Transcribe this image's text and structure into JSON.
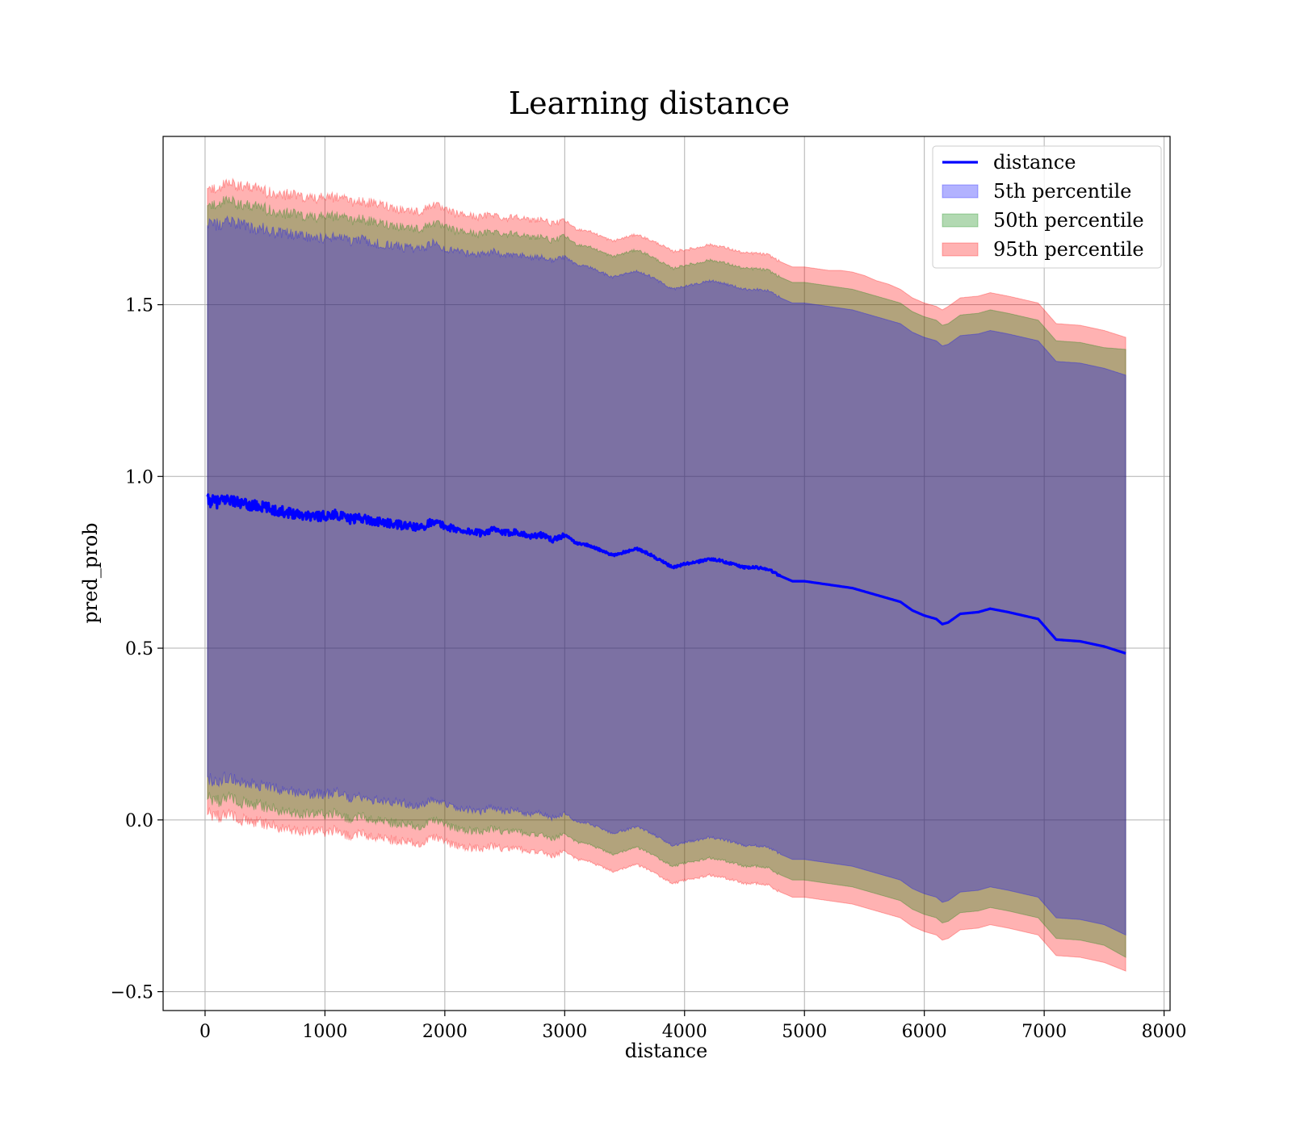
{
  "chart_data": {
    "type": "line",
    "title": "Learning distance",
    "xlabel": "distance",
    "ylabel": "pred_prob",
    "xlim": [
      -350,
      8050
    ],
    "ylim": [
      -0.555,
      1.99
    ],
    "xticks": [
      0,
      1000,
      2000,
      3000,
      4000,
      5000,
      6000,
      7000,
      8000
    ],
    "xtick_labels": [
      "0",
      "1000",
      "2000",
      "3000",
      "4000",
      "5000",
      "6000",
      "7000",
      "8000"
    ],
    "yticks": [
      -0.5,
      0.0,
      0.5,
      1.0,
      1.5
    ],
    "ytick_labels": [
      "−0.5",
      "0.0",
      "0.5",
      "1.0",
      "1.5"
    ],
    "grid": true,
    "legend_position": "top-right",
    "line": {
      "name": "distance",
      "color": "#0000ff",
      "x": [
        20,
        100,
        200,
        300,
        400,
        500,
        600,
        700,
        800,
        900,
        1000,
        1100,
        1200,
        1300,
        1400,
        1500,
        1600,
        1700,
        1800,
        1900,
        2000,
        2100,
        2200,
        2300,
        2400,
        2500,
        2600,
        2700,
        2800,
        2900,
        3000,
        3100,
        3200,
        3300,
        3400,
        3500,
        3600,
        3700,
        3800,
        3900,
        4000,
        4100,
        4200,
        4300,
        4400,
        4500,
        4600,
        4700,
        4800,
        4900,
        5000,
        5100,
        5200,
        5300,
        5400,
        5500,
        5600,
        5700,
        5800,
        5900,
        6000,
        6100,
        6150,
        6200,
        6300,
        6450,
        6550,
        6700,
        6950,
        7100,
        7300,
        7500,
        7680
      ],
      "y": [
        0.93,
        0.925,
        0.935,
        0.92,
        0.915,
        0.91,
        0.9,
        0.895,
        0.89,
        0.885,
        0.885,
        0.89,
        0.875,
        0.88,
        0.87,
        0.865,
        0.86,
        0.855,
        0.85,
        0.87,
        0.855,
        0.845,
        0.84,
        0.835,
        0.845,
        0.835,
        0.84,
        0.825,
        0.83,
        0.815,
        0.83,
        0.805,
        0.8,
        0.785,
        0.77,
        0.78,
        0.79,
        0.775,
        0.755,
        0.735,
        0.745,
        0.75,
        0.76,
        0.755,
        0.745,
        0.735,
        0.735,
        0.73,
        0.71,
        0.695,
        0.695,
        0.69,
        0.685,
        0.68,
        0.675,
        0.665,
        0.655,
        0.645,
        0.635,
        0.61,
        0.595,
        0.585,
        0.57,
        0.575,
        0.6,
        0.605,
        0.615,
        0.605,
        0.585,
        0.525,
        0.52,
        0.505,
        0.485
      ],
      "noise_until_x": 3000
    },
    "bands": [
      {
        "name": "95th percentile",
        "color": "#ff0000",
        "opacity": 0.3,
        "upper": [
          1.85,
          1.84,
          1.855,
          1.845,
          1.84,
          1.83,
          1.825,
          1.82,
          1.815,
          1.81,
          1.81,
          1.815,
          1.8,
          1.8,
          1.795,
          1.79,
          1.78,
          1.775,
          1.77,
          1.795,
          1.775,
          1.765,
          1.76,
          1.755,
          1.765,
          1.75,
          1.76,
          1.745,
          1.75,
          1.735,
          1.745,
          1.72,
          1.715,
          1.7,
          1.685,
          1.695,
          1.705,
          1.69,
          1.675,
          1.655,
          1.66,
          1.665,
          1.675,
          1.67,
          1.66,
          1.65,
          1.65,
          1.645,
          1.625,
          1.61,
          1.61,
          1.605,
          1.6,
          1.6,
          1.595,
          1.585,
          1.57,
          1.56,
          1.545,
          1.52,
          1.505,
          1.495,
          1.485,
          1.495,
          1.52,
          1.525,
          1.535,
          1.525,
          1.505,
          1.445,
          1.44,
          1.425,
          1.405
        ],
        "lower": [
          0.02,
          0.01,
          0.015,
          0.0,
          -0.005,
          -0.01,
          -0.02,
          -0.025,
          -0.03,
          -0.035,
          -0.035,
          -0.03,
          -0.045,
          -0.04,
          -0.05,
          -0.055,
          -0.06,
          -0.065,
          -0.07,
          -0.05,
          -0.065,
          -0.075,
          -0.08,
          -0.085,
          -0.075,
          -0.085,
          -0.08,
          -0.095,
          -0.09,
          -0.105,
          -0.09,
          -0.115,
          -0.12,
          -0.135,
          -0.15,
          -0.14,
          -0.13,
          -0.145,
          -0.165,
          -0.185,
          -0.175,
          -0.17,
          -0.16,
          -0.165,
          -0.175,
          -0.185,
          -0.185,
          -0.19,
          -0.21,
          -0.225,
          -0.225,
          -0.23,
          -0.235,
          -0.24,
          -0.245,
          -0.255,
          -0.265,
          -0.275,
          -0.285,
          -0.31,
          -0.325,
          -0.335,
          -0.35,
          -0.345,
          -0.32,
          -0.315,
          -0.305,
          -0.315,
          -0.335,
          -0.395,
          -0.4,
          -0.415,
          -0.44
        ]
      },
      {
        "name": "50th percentile",
        "color": "#008000",
        "opacity": 0.3,
        "upper": [
          1.8,
          1.795,
          1.805,
          1.79,
          1.785,
          1.78,
          1.77,
          1.765,
          1.76,
          1.755,
          1.755,
          1.76,
          1.745,
          1.75,
          1.74,
          1.735,
          1.73,
          1.725,
          1.72,
          1.74,
          1.725,
          1.715,
          1.71,
          1.705,
          1.715,
          1.705,
          1.71,
          1.695,
          1.7,
          1.685,
          1.7,
          1.675,
          1.67,
          1.655,
          1.64,
          1.65,
          1.66,
          1.645,
          1.625,
          1.605,
          1.615,
          1.62,
          1.63,
          1.625,
          1.615,
          1.605,
          1.605,
          1.6,
          1.58,
          1.565,
          1.565,
          1.56,
          1.555,
          1.55,
          1.545,
          1.535,
          1.525,
          1.515,
          1.505,
          1.48,
          1.465,
          1.455,
          1.44,
          1.445,
          1.47,
          1.475,
          1.485,
          1.475,
          1.455,
          1.395,
          1.39,
          1.375,
          1.37
        ],
        "lower": [
          0.065,
          0.055,
          0.065,
          0.05,
          0.045,
          0.04,
          0.03,
          0.025,
          0.02,
          0.015,
          0.015,
          0.02,
          0.005,
          0.01,
          0.0,
          -0.005,
          -0.01,
          -0.015,
          -0.02,
          0.0,
          -0.015,
          -0.025,
          -0.03,
          -0.035,
          -0.025,
          -0.035,
          -0.03,
          -0.045,
          -0.04,
          -0.055,
          -0.04,
          -0.065,
          -0.07,
          -0.085,
          -0.1,
          -0.09,
          -0.08,
          -0.095,
          -0.115,
          -0.135,
          -0.125,
          -0.12,
          -0.11,
          -0.115,
          -0.125,
          -0.135,
          -0.135,
          -0.14,
          -0.16,
          -0.175,
          -0.175,
          -0.18,
          -0.185,
          -0.19,
          -0.195,
          -0.205,
          -0.215,
          -0.225,
          -0.235,
          -0.26,
          -0.275,
          -0.285,
          -0.3,
          -0.295,
          -0.27,
          -0.265,
          -0.255,
          -0.265,
          -0.285,
          -0.345,
          -0.35,
          -0.365,
          -0.4
        ]
      },
      {
        "name": "5th percentile",
        "color": "#0000ff",
        "opacity": 0.3,
        "upper": [
          1.74,
          1.735,
          1.745,
          1.73,
          1.725,
          1.72,
          1.71,
          1.705,
          1.7,
          1.695,
          1.695,
          1.7,
          1.685,
          1.69,
          1.68,
          1.675,
          1.67,
          1.665,
          1.66,
          1.68,
          1.665,
          1.655,
          1.65,
          1.645,
          1.655,
          1.645,
          1.65,
          1.635,
          1.64,
          1.625,
          1.64,
          1.615,
          1.61,
          1.595,
          1.58,
          1.59,
          1.6,
          1.585,
          1.565,
          1.545,
          1.555,
          1.56,
          1.57,
          1.565,
          1.555,
          1.545,
          1.545,
          1.54,
          1.52,
          1.505,
          1.505,
          1.5,
          1.495,
          1.49,
          1.485,
          1.475,
          1.465,
          1.455,
          1.445,
          1.42,
          1.405,
          1.395,
          1.38,
          1.385,
          1.41,
          1.415,
          1.425,
          1.415,
          1.395,
          1.335,
          1.33,
          1.315,
          1.295
        ],
        "lower": [
          0.12,
          0.115,
          0.125,
          0.11,
          0.105,
          0.1,
          0.09,
          0.085,
          0.08,
          0.075,
          0.075,
          0.08,
          0.065,
          0.07,
          0.06,
          0.055,
          0.05,
          0.045,
          0.04,
          0.06,
          0.045,
          0.035,
          0.03,
          0.025,
          0.035,
          0.025,
          0.03,
          0.015,
          0.02,
          0.005,
          0.02,
          -0.005,
          -0.01,
          -0.025,
          -0.04,
          -0.03,
          -0.02,
          -0.035,
          -0.055,
          -0.075,
          -0.065,
          -0.06,
          -0.05,
          -0.055,
          -0.065,
          -0.075,
          -0.075,
          -0.08,
          -0.1,
          -0.115,
          -0.115,
          -0.12,
          -0.125,
          -0.13,
          -0.135,
          -0.145,
          -0.155,
          -0.165,
          -0.175,
          -0.2,
          -0.215,
          -0.225,
          -0.24,
          -0.235,
          -0.21,
          -0.205,
          -0.195,
          -0.205,
          -0.225,
          -0.285,
          -0.29,
          -0.305,
          -0.335
        ]
      }
    ],
    "legend": [
      {
        "label": "distance",
        "kind": "line",
        "color": "#0000ff"
      },
      {
        "label": "5th percentile",
        "kind": "patch",
        "color": "#0000ff"
      },
      {
        "label": "50th percentile",
        "kind": "patch",
        "color": "#008000"
      },
      {
        "label": "95th percentile",
        "kind": "patch",
        "color": "#ff0000"
      }
    ]
  }
}
